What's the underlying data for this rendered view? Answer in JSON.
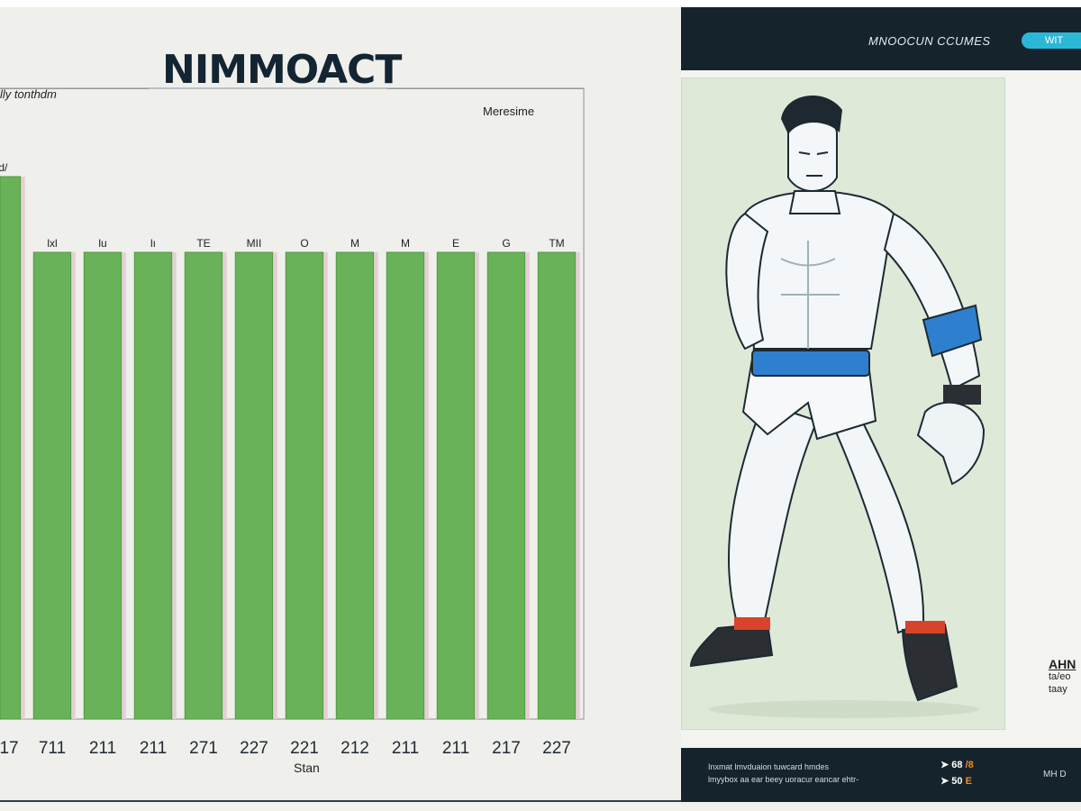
{
  "chart_data": {
    "type": "bar",
    "title": "NIMMOACT",
    "ylabel": "lly tonthdm",
    "xlabel": "Stan",
    "legend": "Meresime",
    "categories": [
      "17",
      "711",
      "211",
      "211",
      "271",
      "227",
      "221",
      "212",
      "211",
      "211",
      "217",
      "227"
    ],
    "top_labels": [
      "ld/",
      "lxl",
      "lu",
      "lı",
      "TE",
      "MII",
      "O",
      "M",
      "M",
      "E",
      "G",
      "TM"
    ],
    "values": [
      86,
      74,
      74,
      74,
      74,
      74,
      74,
      74,
      74,
      74,
      74,
      74
    ],
    "ylim": [
      0,
      100
    ],
    "colors": {
      "bar": "#6ab259",
      "bar_edge": "#4e9a3f",
      "separator": "#e7cdd6"
    },
    "grid": false
  },
  "right_panel": {
    "header_title": "MNOOCUN CCUMES",
    "header_button": "WIT",
    "side_title": "AHN",
    "side_lines": [
      "ta/eo",
      "taay"
    ],
    "footer_lines": [
      "Inxmat lmvduaion tuwcard hmdes",
      "lmyybox aa ear beey uoracur eancar ehtr-"
    ],
    "footer_stats": [
      {
        "icon": "arrow-right",
        "value": "68 ",
        "accent": "/8"
      },
      {
        "icon": "arrow-right",
        "value": "50 ",
        "accent": "E"
      }
    ],
    "footer_right": "MH  D"
  }
}
